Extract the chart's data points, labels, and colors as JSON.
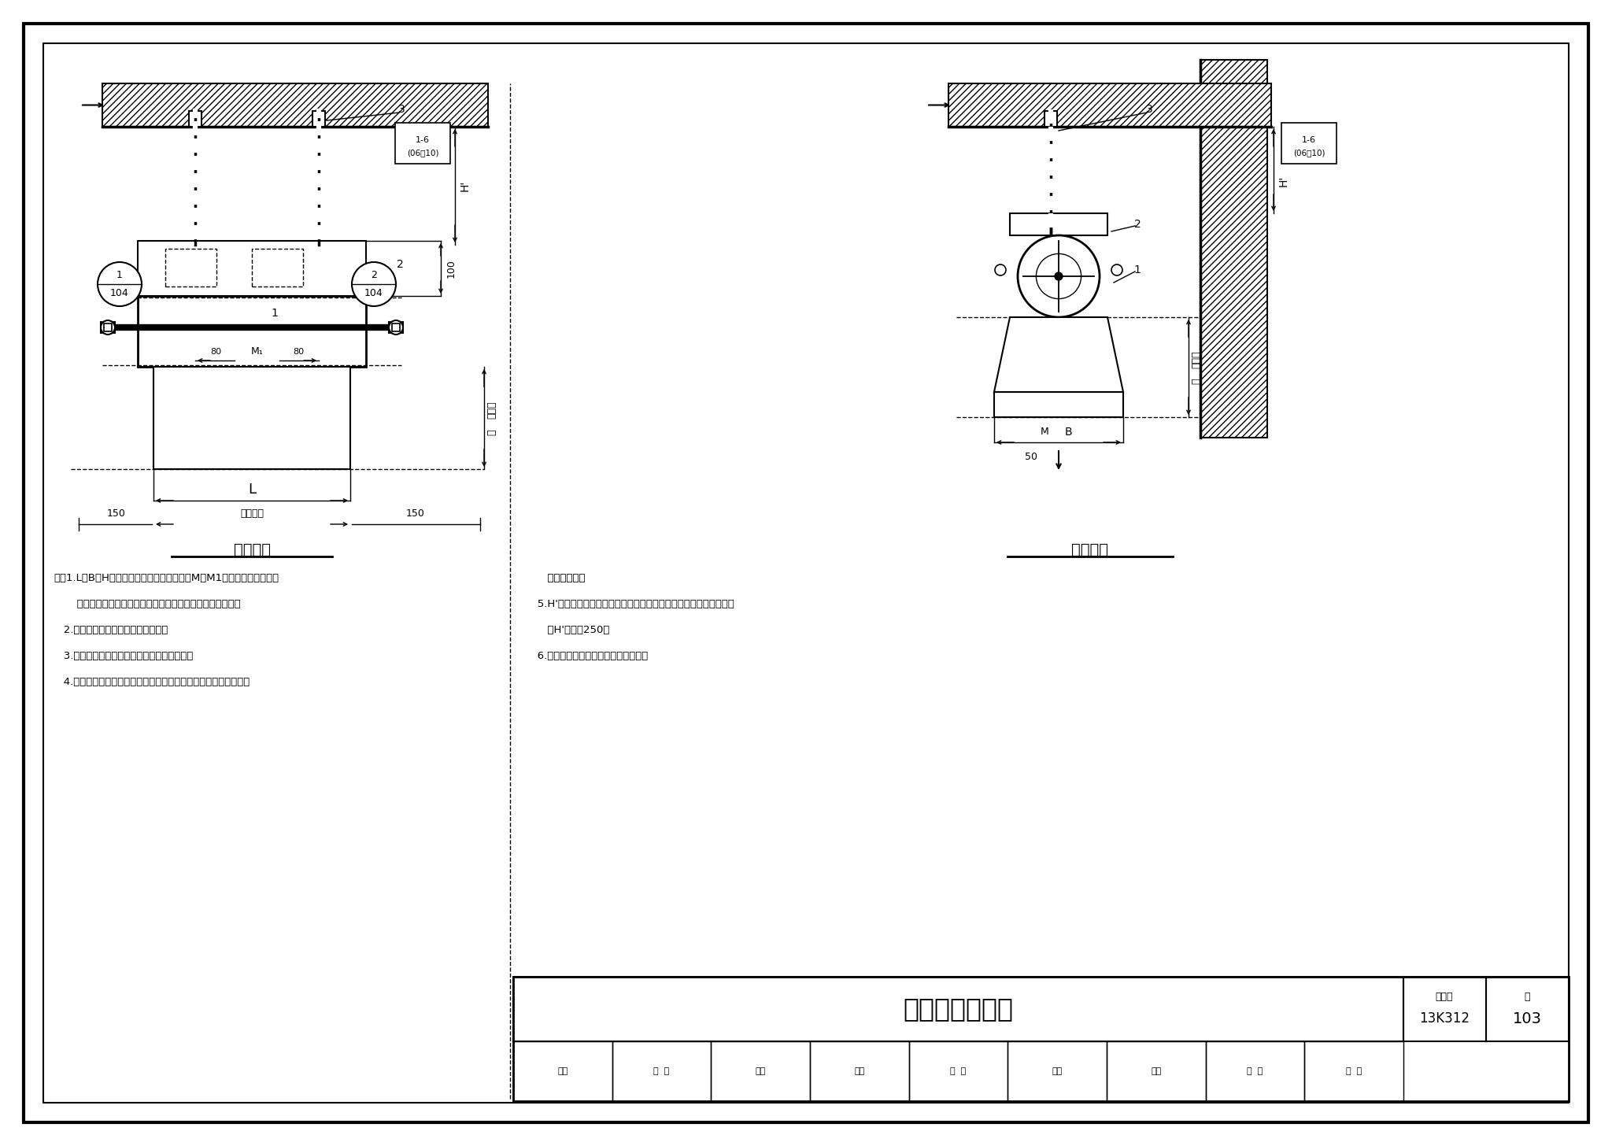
{
  "title": "悬吊安装（一）",
  "fig_num": "13K312",
  "page": "103",
  "collection_num": "图集号",
  "page_label": "页",
  "left_view_title": "正立面图",
  "right_view_title": "侧立面图",
  "bg_color": "#ffffff",
  "notes_left": [
    "注：1.L、B、H分别为空气幕的长、宽、高，M、M1为空气幕固定螺栓相",
    "       对距离。其具体尺寸按工程设计所选用产品样本中的数据。",
    "   2.本页安装方式也适用于卧式机型。",
    "   3.安装定位尺寸可根据现场情况作适当调整。",
    "   4.吊杆应采取防止晃动的措施，可根据施工现场情况，采用拉索、"
  ],
  "notes_right": [
    "      拉杆等方式。",
    "   5.H'为机组顶部与梁（屋面板、楼板）底的距离，由工程设计确定，",
    "      且H'不小于250。",
    "   6.是否装设隔振器，由工程设计确定。"
  ],
  "sig_labels": [
    "审核",
    "白  玲",
    "沿岭",
    "校对",
    "付  诚",
    "认识",
    "设计",
    "成  藻",
    "成  藻"
  ]
}
